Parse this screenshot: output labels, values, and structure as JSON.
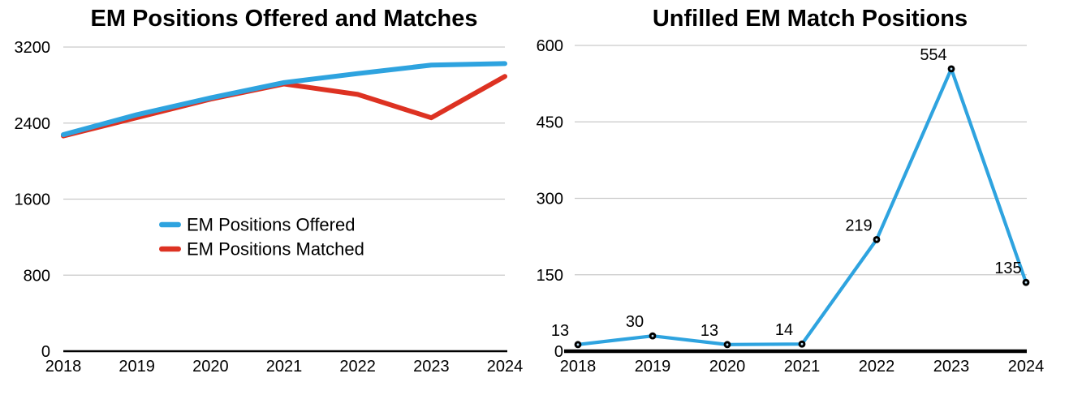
{
  "page": {
    "background": "#ffffff",
    "colors": {
      "gridline": "#c9c9c9",
      "axis_baseline": "#000000",
      "text": "#000000",
      "marker_ring": "#000000",
      "marker_center": "#bfe0f2"
    }
  },
  "chart_data": [
    {
      "type": "line",
      "title": "EM Positions Offered and Matches",
      "categories": [
        "2018",
        "2019",
        "2020",
        "2021",
        "2022",
        "2023",
        "2024"
      ],
      "series": [
        {
          "name": "EM Positions Offered",
          "color": "#2ea3df",
          "values": [
            2278,
            2488,
            2665,
            2826,
            2921,
            3010,
            3026
          ]
        },
        {
          "name": "EM Positions Matched",
          "color": "#dd3222",
          "values": [
            2265,
            2458,
            2652,
            2812,
            2702,
            2456,
            2891
          ]
        }
      ],
      "ylim": [
        0,
        3200
      ],
      "yticks": [
        0,
        800,
        1600,
        2400,
        3200
      ],
      "grid": true,
      "markers": false,
      "legend_position": "inside-middle-left"
    },
    {
      "type": "line",
      "title": "Unfilled EM Match Positions",
      "categories": [
        "2018",
        "2019",
        "2020",
        "2021",
        "2022",
        "2023",
        "2024"
      ],
      "series": [
        {
          "name": "Unfilled EM Match Positions",
          "color": "#2ea3df",
          "values": [
            13,
            30,
            13,
            14,
            219,
            554,
            135
          ]
        }
      ],
      "point_labels": [
        "13",
        "30",
        "13",
        "14",
        "219",
        "554",
        "135"
      ],
      "ylim": [
        0,
        600
      ],
      "yticks": [
        0,
        150,
        300,
        450,
        600
      ],
      "grid": true,
      "markers": true,
      "legend_position": "none"
    }
  ]
}
